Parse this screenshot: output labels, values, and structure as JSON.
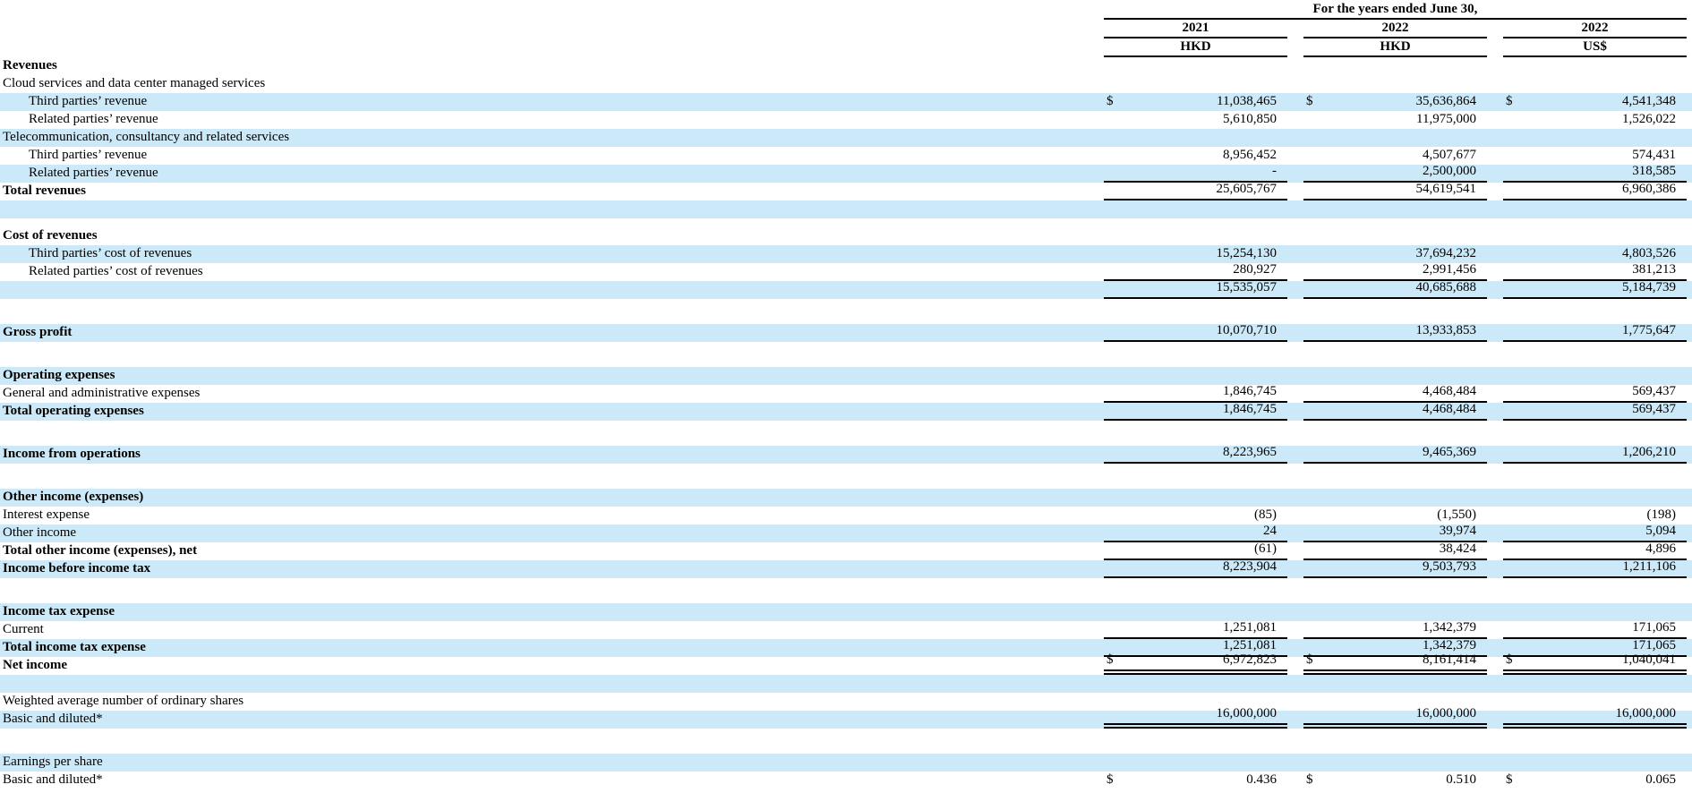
{
  "colors": {
    "row_highlight": "#cbe9f8",
    "rule": "#000000",
    "text": "#000000"
  },
  "dollar_sign": "$",
  "header": {
    "span_title": "For the years ended June 30,",
    "columns": [
      {
        "year": "2021",
        "currency": "HKD"
      },
      {
        "year": "2022",
        "currency": "HKD"
      },
      {
        "year": "2022",
        "currency": "US$"
      }
    ]
  },
  "rows": [
    {
      "label": "Revenues",
      "bold": true,
      "bg": "w"
    },
    {
      "label": "Cloud services and data center managed services",
      "bg": "w"
    },
    {
      "label": "Third parties’ revenue",
      "indent": true,
      "bg": "b",
      "dollar": true,
      "values": [
        "11,038,465",
        "35,636,864",
        "4,541,348"
      ]
    },
    {
      "label": "Related parties’ revenue",
      "indent": true,
      "bg": "w",
      "values": [
        "5,610,850",
        "11,975,000",
        "1,526,022"
      ]
    },
    {
      "label": "Telecommunication, consultancy and related services",
      "bg": "b"
    },
    {
      "label": "Third parties’ revenue",
      "indent": true,
      "bg": "w",
      "values": [
        "8,956,452",
        "4,507,677",
        "574,431"
      ]
    },
    {
      "label": "Related parties’ revenue",
      "indent": true,
      "bg": "b",
      "values": [
        "-",
        "2,500,000",
        "318,585"
      ],
      "border": "s"
    },
    {
      "label": "Total revenues",
      "bold": true,
      "bg": "w",
      "values": [
        "25,605,767",
        "54,619,541",
        "6,960,386"
      ],
      "border": "s"
    },
    {
      "bg": "b"
    },
    {
      "bg": "w",
      "h": "thin"
    },
    {
      "label": "Cost of revenues",
      "bold": true,
      "bg": "w"
    },
    {
      "label": "Third parties’ cost of revenues",
      "indent": true,
      "bg": "b",
      "values": [
        "15,254,130",
        "37,694,232",
        "4,803,526"
      ]
    },
    {
      "label": "Related parties’ cost of revenues",
      "indent": true,
      "bg": "w",
      "values": [
        "280,927",
        "2,991,456",
        "381,213"
      ],
      "border": "s"
    },
    {
      "bg": "b",
      "values": [
        "15,535,057",
        "40,685,688",
        "5,184,739"
      ],
      "border": "s"
    },
    {
      "bg": "w",
      "h": "sp"
    },
    {
      "label": "Gross profit",
      "bold": true,
      "bg": "b",
      "values": [
        "10,070,710",
        "13,933,853",
        "1,775,647"
      ],
      "border": "s"
    },
    {
      "bg": "w",
      "h": "sp"
    },
    {
      "label": "Operating expenses",
      "bold": true,
      "bg": "b"
    },
    {
      "label": "General and administrative expenses",
      "bg": "w",
      "values": [
        "1,846,745",
        "4,468,484",
        "569,437"
      ],
      "border": "s"
    },
    {
      "label": "Total operating expenses",
      "bold": true,
      "bg": "b",
      "values": [
        "1,846,745",
        "4,468,484",
        "569,437"
      ],
      "border": "s"
    },
    {
      "bg": "w",
      "h": "sp"
    },
    {
      "label": "Income from operations",
      "bold": true,
      "bg": "b",
      "values": [
        "8,223,965",
        "9,465,369",
        "1,206,210"
      ],
      "border": "s"
    },
    {
      "bg": "w",
      "h": "sp"
    },
    {
      "label": "Other income (expenses)",
      "bold": true,
      "bg": "b"
    },
    {
      "label": "Interest expense",
      "bg": "w",
      "values": [
        "(85)",
        "(1,550)",
        "(198)"
      ]
    },
    {
      "label": "Other income",
      "bg": "b",
      "values": [
        "24",
        "39,974",
        "5,094"
      ],
      "border": "s"
    },
    {
      "label": "Total other income (expenses), net",
      "bold": true,
      "bg": "w",
      "values": [
        "(61)",
        "38,424",
        "4,896"
      ],
      "border": "s"
    },
    {
      "label": "Income before income tax",
      "bold": true,
      "bg": "b",
      "values": [
        "8,223,904",
        "9,503,793",
        "1,211,106"
      ],
      "border": "s"
    },
    {
      "bg": "w",
      "h": "sp"
    },
    {
      "label": "Income tax expense",
      "bold": true,
      "bg": "b"
    },
    {
      "label": "Current",
      "bg": "w",
      "values": [
        "1,251,081",
        "1,342,379",
        "171,065"
      ],
      "border": "s"
    },
    {
      "label": "Total income tax expense",
      "bold": true,
      "bg": "b",
      "values": [
        "1,251,081",
        "1,342,379",
        "171,065"
      ],
      "border": "s"
    },
    {
      "label": "Net income",
      "bold": true,
      "bg": "w",
      "dollar": true,
      "values": [
        "6,972,823",
        "8,161,414",
        "1,040,041"
      ],
      "border": "d"
    },
    {
      "bg": "b"
    },
    {
      "label": "Weighted average number of ordinary shares",
      "bg": "w"
    },
    {
      "label": "Basic and diluted*",
      "bg": "b",
      "values": [
        "16,000,000",
        "16,000,000",
        "16,000,000"
      ],
      "border": "d"
    },
    {
      "bg": "w",
      "h": "sp"
    },
    {
      "label": "Earnings per share",
      "bg": "b"
    },
    {
      "label": "Basic and diluted*",
      "bg": "w",
      "dollar": true,
      "values": [
        "0.436",
        "0.510",
        "0.065"
      ]
    }
  ]
}
